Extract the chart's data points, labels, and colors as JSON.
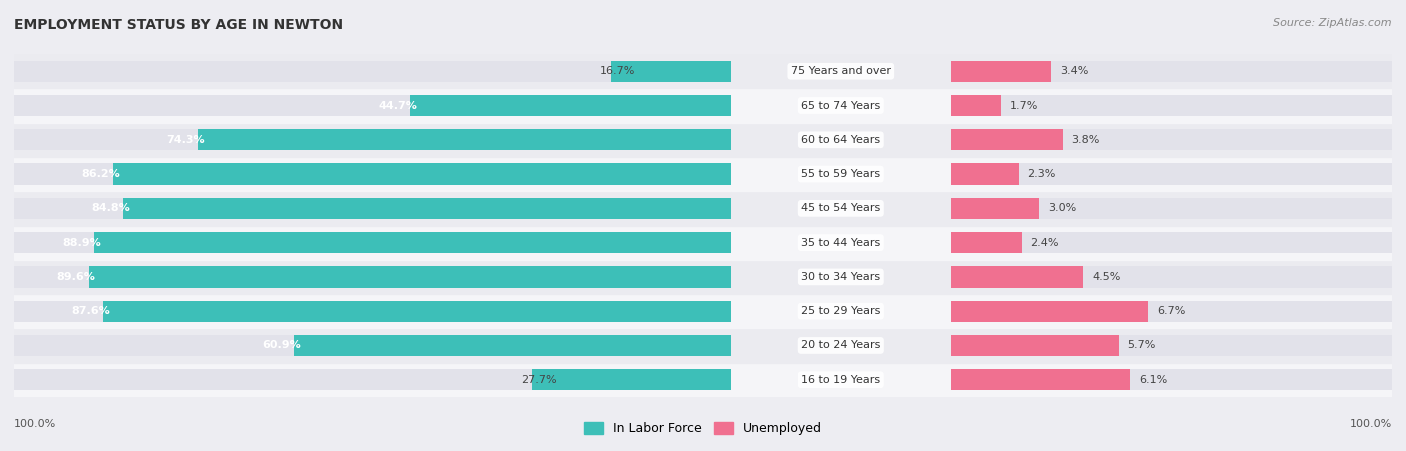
{
  "title": "EMPLOYMENT STATUS BY AGE IN NEWTON",
  "source": "Source: ZipAtlas.com",
  "categories": [
    "16 to 19 Years",
    "20 to 24 Years",
    "25 to 29 Years",
    "30 to 34 Years",
    "35 to 44 Years",
    "45 to 54 Years",
    "55 to 59 Years",
    "60 to 64 Years",
    "65 to 74 Years",
    "75 Years and over"
  ],
  "labor_force": [
    27.7,
    60.9,
    87.6,
    89.6,
    88.9,
    84.8,
    86.2,
    74.3,
    44.7,
    16.7
  ],
  "unemployed": [
    6.1,
    5.7,
    6.7,
    4.5,
    2.4,
    3.0,
    2.3,
    3.8,
    1.7,
    3.4
  ],
  "labor_force_color": "#3dbfb8",
  "unemployed_color": "#f07090",
  "background_color": "#ededf2",
  "bar_bg_color": "#e2e2ea",
  "row_bg_even": "#f5f5f8",
  "row_bg_odd": "#ebebf0",
  "legend_labor": "In Labor Force",
  "legend_unemployed": "Unemployed",
  "x_left_label": "100.0%",
  "x_right_label": "100.0%",
  "max_lf": 100.0,
  "max_un": 15.0
}
